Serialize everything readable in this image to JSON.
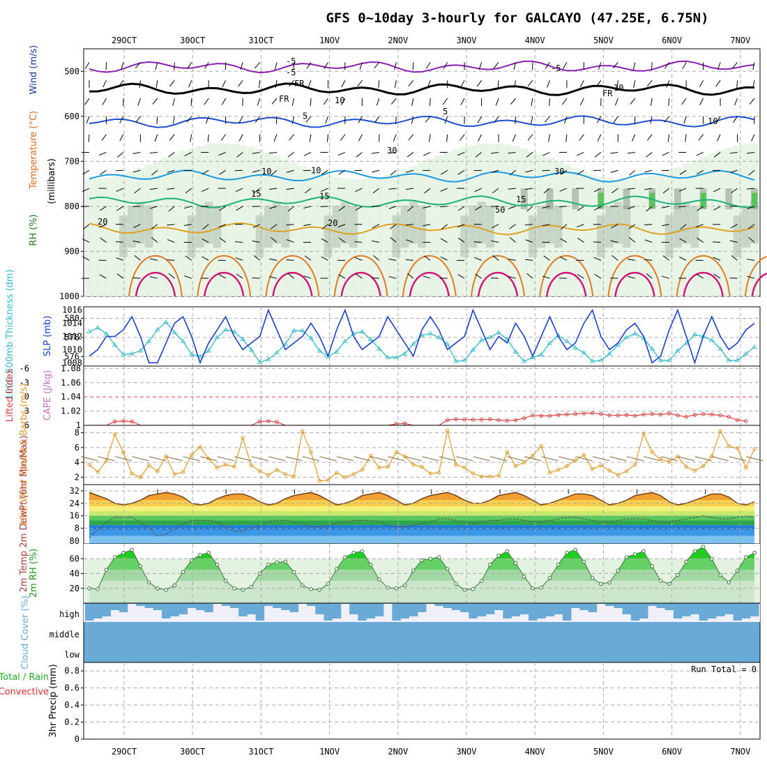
{
  "title": "GFS 0~10day 3-hourly for GALCAYO (47.25E, 6.75N)",
  "colors": {
    "grid": "#aaaaaa",
    "rh_light": "#e8f5e6",
    "rh_mid": "#c7d6c7",
    "rh_dark": "#8fa58f",
    "rh_green": "#59c45a",
    "thickness": "#33bbc8",
    "slp": "#1b3fc7",
    "lifted": "#d84040",
    "wind": "#e39a2a",
    "barb": "#7a5a2a",
    "cloud": "#6aaad6",
    "cloud_bg": "#f1eff8",
    "rh2m": "#33cc33"
  },
  "chart_data": [
    {
      "panel": "upper-air",
      "type": "heatmap",
      "x_ticks_top": [
        "29OCT",
        "30OCT",
        "31OCT",
        "1NOV",
        "2NOV",
        "3NOV",
        "4NOV",
        "5NOV",
        "6NOV",
        "7NOV"
      ],
      "x_ticks_bottom": [
        "29OCT",
        "30OCT",
        "31OCT",
        "1NOV",
        "2NOV",
        "3NOV",
        "4NOV",
        "5NOV",
        "6NOV",
        "7NOV"
      ],
      "y_ticks": [
        "500",
        "600",
        "700",
        "800",
        "900",
        "1000"
      ],
      "ylim": [
        450,
        1000
      ],
      "ylabel_parts": [
        "Wind (m/s)",
        "Temperature (°C)",
        "RH (%)"
      ],
      "ylabel_millibars": "(millibars)",
      "contour_labels": [
        "-5",
        "FR",
        "5",
        "10",
        "15",
        "20",
        "10",
        "30",
        "50",
        "-5",
        "FR",
        "10",
        "10",
        "30",
        "15"
      ],
      "temperature_isotherms": [
        {
          "label": "-5",
          "pressure": 490
        },
        {
          "label": "FR",
          "pressure": 540
        },
        {
          "label": "5",
          "pressure": 612
        },
        {
          "label": "10",
          "pressure": 733
        },
        {
          "label": "15",
          "pressure": 790
        },
        {
          "label": "20",
          "pressure": 850
        }
      ]
    },
    {
      "panel": "thickness-slp",
      "type": "line",
      "ylabel": "1000-500mb Thickness (dm)",
      "ylabel2": "SLP (mb)",
      "y_ticks_left": [
        "580",
        "578",
        "576"
      ],
      "y_ticks_right": [
        "1016",
        "1014",
        "1012",
        "1010",
        "1008"
      ],
      "series": [
        {
          "name": "Thickness",
          "values": [
            578.6,
            579.0,
            578.4,
            577.2,
            576.2,
            576.3,
            576.6,
            577.6,
            578.8,
            579.6,
            578.5,
            577.6,
            576.2,
            576.0,
            576.6,
            578.0,
            578.8,
            578.6,
            577.8,
            576.7,
            575.4,
            575.7,
            576.4,
            577.3,
            578.7,
            578.7,
            577.9,
            576.6,
            576.0,
            576.5,
            577.6,
            578.4,
            578.6,
            577.8,
            576.8,
            575.9,
            575.9,
            576.3,
            577.3,
            578.2,
            578.4,
            578.0,
            577.3,
            575.5,
            575.6,
            576.7,
            577.7,
            578.0,
            578.5,
            577.8,
            576.5,
            575.5,
            575.9,
            576.2,
            577.4,
            578.2,
            577.6,
            576.9,
            576.4,
            575.5,
            575.6,
            576.3,
            577.2,
            578.0,
            578.4,
            577.9,
            576.8,
            575.6,
            575.6,
            576.6,
            577.4,
            578.3,
            578.1,
            577.7,
            576.8,
            575.6,
            575.6,
            576.3,
            577.0
          ]
        },
        {
          "name": "SLP",
          "values": [
            1009,
            1010,
            1012,
            1012,
            1013,
            1015,
            1012,
            1008,
            1008,
            1011,
            1014,
            1015,
            1012,
            1008,
            1011,
            1013,
            1015,
            1012,
            1010,
            1011,
            1012,
            1016,
            1013,
            1010,
            1011,
            1012,
            1014,
            1012,
            1009,
            1013,
            1016,
            1012,
            1010,
            1011,
            1012,
            1015,
            1013,
            1011,
            1009,
            1013,
            1015,
            1013,
            1010,
            1011,
            1012,
            1016,
            1013,
            1010,
            1012,
            1011,
            1014,
            1012,
            1009,
            1012,
            1015,
            1012,
            1010,
            1011,
            1014,
            1016,
            1012,
            1010,
            1011,
            1013,
            1014,
            1012,
            1008,
            1009,
            1013,
            1016,
            1012,
            1008,
            1012,
            1015,
            1012,
            1010,
            1011,
            1013,
            1014
          ]
        }
      ]
    },
    {
      "panel": "cape-lifted",
      "type": "line",
      "ylabel": "Lifted Index",
      "ylabel2": "CAPE (J/kg)",
      "y_ticks_left": [
        "-6",
        "-3",
        "0",
        "3",
        "6"
      ],
      "y_ticks_right": [
        "1.08",
        "1.06",
        "1.04",
        "1.02",
        "1"
      ],
      "series": [
        {
          "name": "Lifted Index",
          "values": [
            6,
            6,
            6,
            5.2,
            5.1,
            5.2,
            6,
            6,
            6,
            6,
            6,
            6,
            6,
            6,
            6,
            6,
            6,
            6,
            6,
            6,
            5.2,
            5.1,
            5.3,
            6,
            6,
            6,
            6,
            6,
            6,
            6,
            6,
            6,
            6,
            6,
            6,
            6,
            5.7,
            5.6,
            6,
            6,
            6,
            6,
            4.9,
            4.7,
            4.8,
            4.8,
            4.8,
            4.7,
            4.9,
            5,
            4.9,
            4.5,
            3.9,
            4,
            4,
            3.8,
            3.7,
            3.6,
            3.5,
            3.4,
            3.6,
            3.9,
            3.9,
            3.8,
            4,
            3.7,
            3.6,
            3.7,
            3.5,
            3.9,
            4.2,
            3.8,
            3.6,
            3.7,
            3.9,
            4.2,
            4.9,
            5.1
          ]
        }
      ]
    },
    {
      "panel": "10m-wind",
      "type": "line",
      "ylabel": "10m Wind Speed & Barbs (m/s)",
      "y_ticks": [
        "8",
        "6",
        "4",
        "2"
      ],
      "ylim": [
        1,
        9
      ],
      "series": [
        {
          "name": "Speed",
          "values": [
            3.7,
            2.7,
            4.2,
            7.8,
            5.3,
            2.5,
            2.0,
            3.6,
            2.8,
            4.8,
            2.4,
            2.7,
            5.0,
            6.1,
            4.5,
            3.3,
            3.7,
            3.4,
            7.3,
            3.6,
            2.8,
            2.3,
            3.0,
            2.4,
            2.1,
            8.2,
            5.4,
            1.5,
            1.6,
            2.6,
            2.0,
            2.4,
            3.0,
            4.9,
            3.3,
            3.4,
            5.4,
            4.8,
            3.7,
            3.4,
            2.5,
            2.6,
            8.3,
            3.7,
            3.3,
            2.5,
            2.1,
            2.1,
            2.2,
            5.4,
            3.5,
            4.0,
            4.9,
            6.2,
            2.6,
            3.0,
            3.5,
            4.3,
            5.0,
            3.1,
            3.6,
            2.9,
            2.3,
            2.8,
            3.7,
            7.9,
            5.4,
            4.4,
            4.1,
            4.8,
            3.4,
            2.9,
            3.5,
            4.8,
            8.2,
            6.2,
            5.9,
            3.3,
            5.8
          ]
        }
      ]
    },
    {
      "panel": "2m-temp",
      "type": "area",
      "ylabel": "2m Temp 2m DewPt (6hr Min/Max)",
      "y_ticks": [
        "32",
        "24",
        "16",
        "8",
        "80"
      ],
      "ylim": [
        0,
        36
      ],
      "series": [
        {
          "name": "Temperature",
          "values": [
            31,
            29,
            27,
            24,
            23,
            24,
            26,
            29,
            30,
            31,
            30,
            28,
            24,
            23,
            24,
            27,
            29,
            30,
            30,
            28,
            25,
            23,
            24,
            27,
            29,
            30,
            31,
            29,
            26,
            23,
            24,
            26,
            29,
            30,
            31,
            29,
            26,
            23,
            24,
            27,
            29,
            30,
            31,
            29,
            26,
            24,
            24,
            26,
            29,
            30,
            31,
            29,
            26,
            23,
            24,
            26,
            28,
            30,
            30,
            29,
            26,
            23,
            24,
            26,
            29,
            30,
            31,
            29,
            25,
            23,
            24,
            26,
            28,
            30,
            30,
            28,
            24,
            23,
            25
          ]
        },
        {
          "name": "DewPoint",
          "values": [
            2,
            7,
            12,
            15,
            15,
            15,
            12,
            8,
            3,
            4,
            8,
            11,
            13,
            13,
            13,
            12,
            9,
            6,
            6,
            8,
            10,
            12,
            13,
            13,
            12,
            11,
            9,
            9,
            10,
            11,
            12,
            13,
            13,
            13,
            12,
            10,
            9,
            9,
            10,
            11,
            12,
            14,
            14,
            13,
            12,
            11,
            12,
            13,
            13,
            14,
            14,
            13,
            12,
            12,
            13,
            14,
            15,
            15,
            14,
            13,
            12,
            12,
            13,
            14,
            14,
            14,
            13,
            12,
            12,
            13,
            14,
            15,
            16,
            15,
            14,
            14,
            15,
            16,
            15
          ]
        }
      ]
    },
    {
      "panel": "2m-rh",
      "type": "area",
      "ylabel": "2m RH (%)",
      "y_ticks": [
        "60",
        "40",
        "20"
      ],
      "ylim": [
        0,
        80
      ],
      "series": [
        {
          "name": "RH",
          "values": [
            20,
            19,
            45,
            62,
            68,
            72,
            50,
            28,
            20,
            18,
            24,
            42,
            58,
            65,
            68,
            52,
            30,
            20,
            18,
            22,
            40,
            52,
            55,
            56,
            42,
            24,
            19,
            18,
            26,
            46,
            62,
            68,
            70,
            52,
            32,
            21,
            20,
            24,
            44,
            58,
            60,
            62,
            46,
            26,
            18,
            19,
            30,
            52,
            64,
            70,
            54,
            36,
            20,
            21,
            34,
            52,
            68,
            72,
            56,
            34,
            26,
            28,
            44,
            62,
            66,
            70,
            50,
            30,
            26,
            38,
            56,
            70,
            76,
            60,
            38,
            28,
            44,
            62,
            68
          ]
        }
      ]
    },
    {
      "panel": "cloud-cover",
      "type": "area",
      "ylabel": "Cloud Cover (%)",
      "y_ticks": [
        "high",
        "middle",
        "low"
      ]
    },
    {
      "panel": "precip",
      "type": "bar",
      "ylabel": "3hr Precip (mm)",
      "legend_total_rain": "Total / Rain",
      "legend_convective": "Convective",
      "run_total": "Run Total = 0",
      "y_ticks": [
        "0.8",
        "0.6",
        "0.4",
        "0.2",
        "0"
      ],
      "ylim": [
        0,
        0.9
      ],
      "values": []
    }
  ]
}
